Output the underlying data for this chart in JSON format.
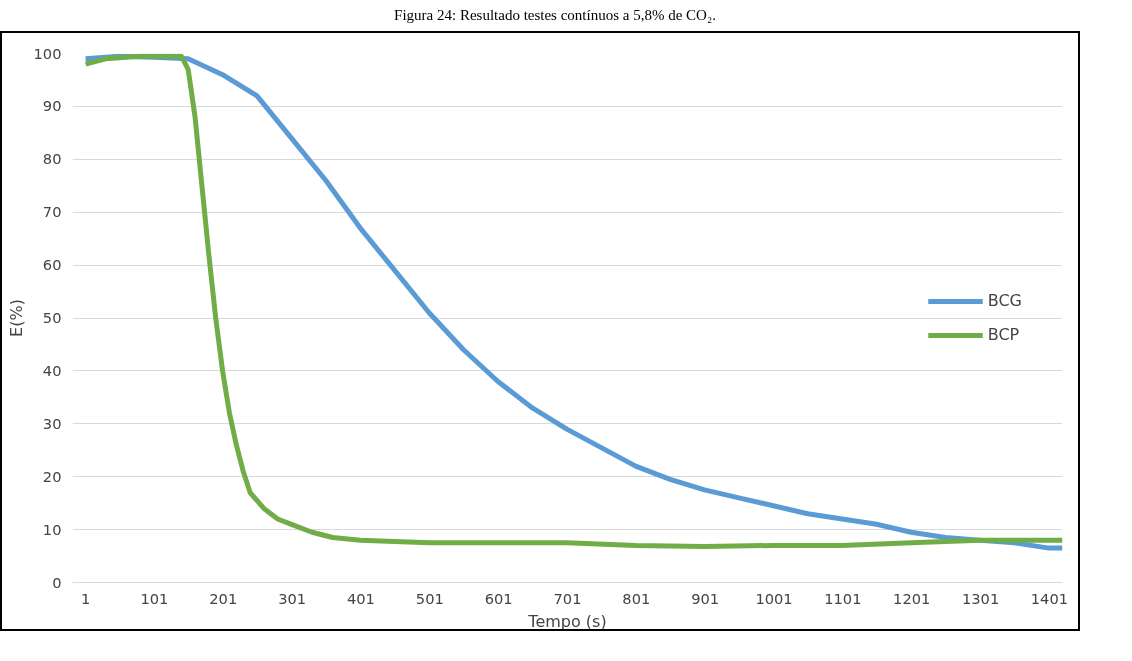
{
  "chart_data": {
    "type": "line",
    "title": "Figura 24: Resultado testes contínuos a 5,8% de CO₂.",
    "xlabel": "Tempo (s)",
    "ylabel": "E(%)",
    "xlim": [
      -18,
      1420
    ],
    "xticks": [
      1,
      101,
      201,
      301,
      401,
      501,
      601,
      701,
      801,
      901,
      1001,
      1101,
      1201,
      1301,
      1401
    ],
    "ylim": [
      0,
      100
    ],
    "yticks": [
      0,
      10,
      20,
      30,
      40,
      50,
      60,
      70,
      80,
      90,
      100
    ],
    "grid": "y",
    "legend": "right",
    "line_style": "solid",
    "marker": "none",
    "series": [
      {
        "name": "BCG",
        "color": "#5b9bd5",
        "x": [
          1,
          50,
          100,
          150,
          200,
          250,
          300,
          350,
          400,
          450,
          500,
          550,
          600,
          650,
          700,
          750,
          800,
          850,
          900,
          950,
          1000,
          1050,
          1100,
          1150,
          1200,
          1250,
          1300,
          1350,
          1400,
          1420
        ],
        "values": [
          99,
          99.5,
          99.3,
          99,
          96,
          92,
          84,
          76,
          67,
          59,
          51,
          44,
          38,
          33,
          29,
          25.5,
          22,
          19.5,
          17.5,
          16,
          14.5,
          13,
          12,
          11,
          9.5,
          8.5,
          8,
          7.5,
          6.5,
          6.5
        ]
      },
      {
        "name": "BCP",
        "color": "#70ad47",
        "x": [
          1,
          30,
          80,
          140,
          150,
          160,
          170,
          180,
          190,
          200,
          210,
          220,
          230,
          240,
          260,
          280,
          300,
          330,
          360,
          400,
          500,
          600,
          700,
          800,
          900,
          1000,
          1100,
          1200,
          1300,
          1420
        ],
        "values": [
          98,
          99,
          99.5,
          99.5,
          97,
          88,
          75,
          62,
          50,
          40,
          32,
          26,
          21,
          17,
          14,
          12,
          11,
          9.5,
          8.5,
          8,
          7.5,
          7.5,
          7.5,
          7,
          6.8,
          7,
          7,
          7.5,
          8,
          8
        ]
      }
    ]
  }
}
